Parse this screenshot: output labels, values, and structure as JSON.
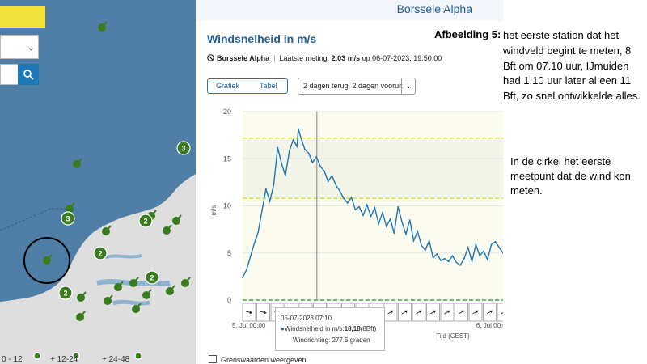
{
  "map": {
    "legend": [
      "0 - 12",
      "+ 12-24",
      "+ 24-48"
    ],
    "colors": {
      "sea": "#4f7fa6",
      "land": "#dedede",
      "marker": "#3a7b1f",
      "accent": "#f1e13a"
    },
    "cluster_counts": [
      "3",
      "3",
      "2",
      "2",
      "2",
      "2",
      "2"
    ],
    "controls": {
      "search_icon": "search-icon",
      "dropdown_icon": "chevron-down-icon"
    }
  },
  "station": {
    "name": "Borssele Alpha"
  },
  "chart": {
    "title": "Windsnelheid in m/s",
    "station_label": "Borssele Alpha",
    "last_meas_label": "Laatste meting:",
    "last_meas_value": "2,03 m/s",
    "last_meas_suffix": "op 06-07-2023, 19:50:00",
    "tabs": [
      "Grafiek",
      "Tabel"
    ],
    "range_select": "2 dagen terug, 2 dagen vooruit",
    "tooltip": {
      "time": "05-07-2023 07:10",
      "label": "Windsnelheid in m/s:",
      "value": "18,18",
      "bft": "(8Bft)",
      "direction": "Windrichting: 277.5 graden"
    },
    "checkbox_label": "Grenswaarden weergeven",
    "colors": {
      "line": "#1f77b4",
      "threshold": "#e0d82a",
      "zero_line": "#2a8a2a",
      "cursor": "#888888"
    }
  },
  "chart_data": {
    "type": "line",
    "title": "Windsnelheid in m/s",
    "xlabel": "Tijd (CEST)",
    "ylabel": "m/s",
    "ylim": [
      0,
      20
    ],
    "yticks": [
      0,
      5,
      10,
      15,
      20
    ],
    "xticks": [
      "5. Jul 00:00",
      "6. Jul 00:00"
    ],
    "x_range": [
      "05-07-2023 00:00",
      "06-07-2023 19:50"
    ],
    "thresholds": [
      17.2,
      10.8
    ],
    "cursor": {
      "time": "05-07-2023 07:10",
      "value": 18.18
    },
    "wind_arrows": 19,
    "series": [
      {
        "x": [
          0.0,
          0.5,
          1.0,
          1.5,
          2.0,
          2.5,
          3.0,
          3.5,
          4.0,
          4.5,
          5.0,
          5.5,
          6.0,
          6.5,
          7.0,
          7.17,
          7.5,
          8.0,
          8.5,
          9.0,
          9.5,
          10.0,
          10.5,
          11.0,
          11.5,
          12.0,
          12.5,
          13.0,
          13.5,
          14.0,
          14.5,
          15.0,
          15.5,
          16.0,
          16.5,
          17.0,
          17.5,
          18.0,
          18.5,
          19.0,
          19.5,
          20.0,
          20.5,
          21.0,
          21.5,
          22.0,
          22.5,
          23.0,
          23.5,
          24.0,
          24.5,
          25.0,
          25.5,
          26.0,
          26.5,
          27.0,
          27.5,
          28.0,
          28.5,
          29.0,
          29.5,
          30.0,
          30.5,
          31.0,
          31.5,
          32.0,
          32.5,
          33.0,
          33.5
        ],
        "values": [
          2.4,
          3.2,
          4.6,
          6.0,
          7.2,
          9.5,
          11.8,
          10.5,
          12.2,
          16.2,
          14.5,
          13.2,
          15.8,
          17.0,
          16.3,
          18.18,
          17.2,
          16.0,
          15.6,
          14.6,
          15.2,
          14.2,
          13.7,
          12.6,
          13.2,
          12.2,
          11.6,
          10.8,
          10.3,
          10.9,
          9.6,
          9.9,
          9.0,
          10.1,
          8.9,
          9.8,
          8.1,
          9.3,
          7.8,
          8.6,
          7.1,
          9.9,
          8.3,
          7.0,
          8.5,
          6.3,
          7.3,
          5.8,
          5.3,
          6.3,
          4.5,
          4.9,
          4.2,
          4.4,
          4.1,
          4.7,
          4.0,
          3.7,
          4.4,
          5.6,
          4.1,
          5.9,
          4.7,
          5.2,
          4.3,
          5.9,
          6.2,
          5.6,
          5.0
        ]
      }
    ]
  },
  "annotation": {
    "label": "Afbeelding 5:",
    "text": "het eerste station dat het windveld begint te meten, 8 Bft om 07.10 uur, IJmuiden had  1.10 uur later al een 11 Bft, zo snel ontwikkelde alles.",
    "text2": "In de cirkel het eerste meetpunt dat de wind kon meten."
  }
}
